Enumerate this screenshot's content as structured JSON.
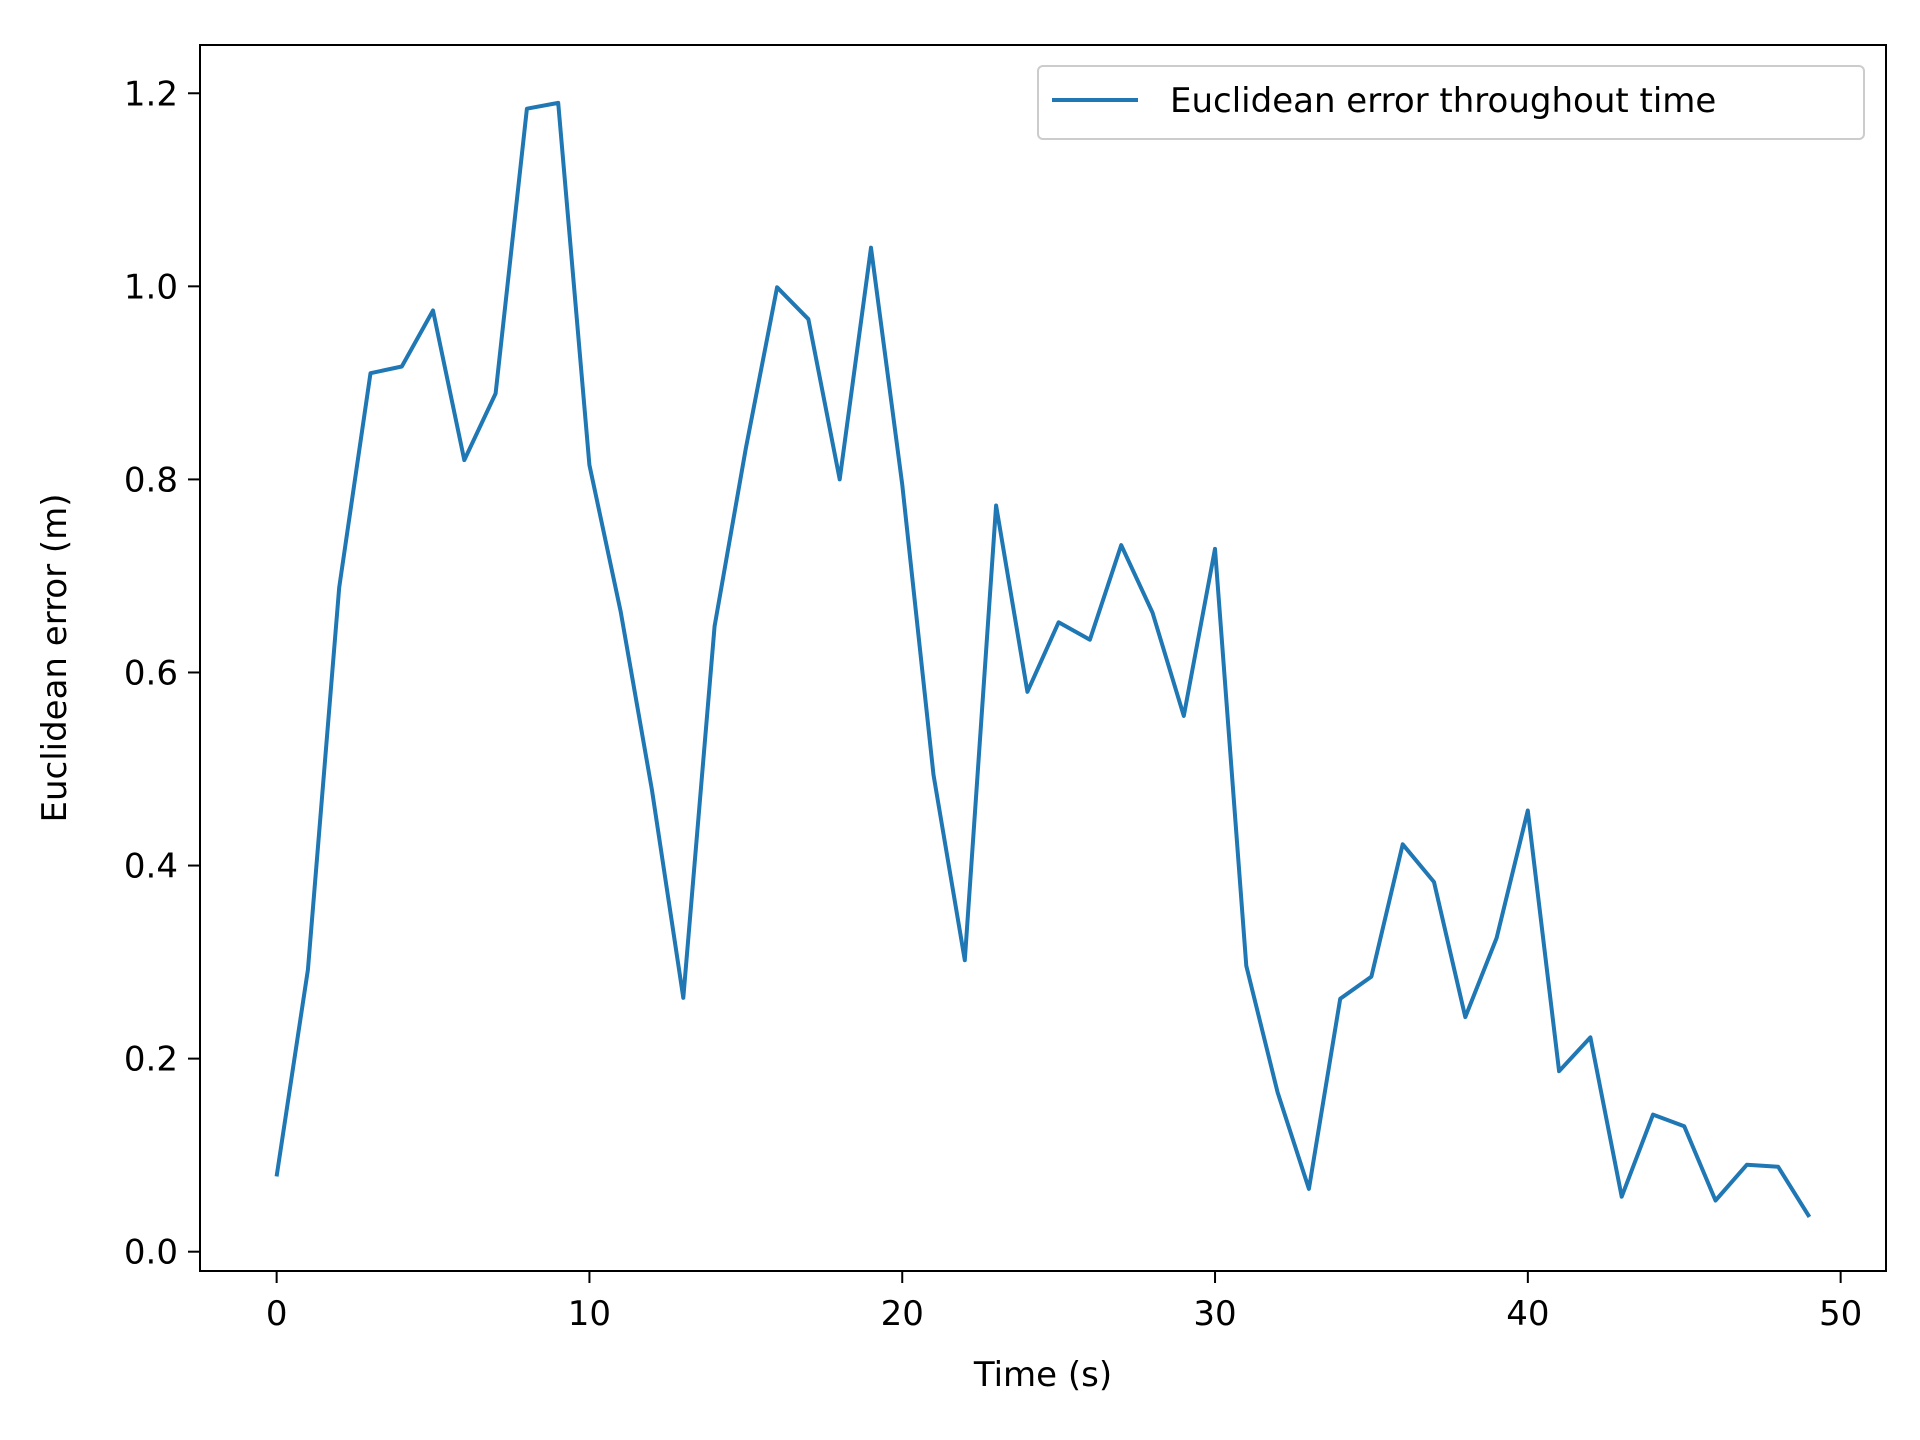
{
  "chart_data": {
    "type": "line",
    "title": "",
    "xlabel": "Time (s)",
    "ylabel": "Euclidean error (m)",
    "xlim": [
      -2.45,
      51.45
    ],
    "ylim": [
      -0.02,
      1.25
    ],
    "xticks": [
      0,
      10,
      20,
      30,
      40,
      50
    ],
    "xtick_labels": [
      "0",
      "10",
      "20",
      "30",
      "40",
      "50"
    ],
    "yticks": [
      0.0,
      0.2,
      0.4,
      0.6,
      0.8,
      1.0,
      1.2
    ],
    "ytick_labels": [
      "0.0",
      "0.2",
      "0.4",
      "0.6",
      "0.8",
      "1.0",
      "1.2"
    ],
    "grid": false,
    "legend_position": "top-right",
    "series": [
      {
        "name": "Euclidean error throughout time",
        "color": "#1f77b4",
        "x": [
          0,
          1,
          2,
          3,
          4,
          5,
          6,
          7,
          8,
          9,
          10,
          11,
          12,
          13,
          14,
          15,
          16,
          17,
          18,
          19,
          20,
          21,
          22,
          23,
          24,
          25,
          26,
          27,
          28,
          29,
          30,
          31,
          32,
          33,
          34,
          35,
          36,
          37,
          38,
          39,
          40,
          41,
          42,
          43,
          44,
          45,
          46,
          47,
          48,
          49
        ],
        "y": [
          0.078,
          0.292,
          0.688,
          0.91,
          0.917,
          0.975,
          0.82,
          0.889,
          1.184,
          1.19,
          0.815,
          0.663,
          0.478,
          0.263,
          0.648,
          0.832,
          0.999,
          0.966,
          0.8,
          1.04,
          0.795,
          0.494,
          0.302,
          0.773,
          0.58,
          0.652,
          0.634,
          0.732,
          0.662,
          0.555,
          0.728,
          0.296,
          0.165,
          0.065,
          0.262,
          0.285,
          0.422,
          0.383,
          0.243,
          0.325,
          0.457,
          0.187,
          0.222,
          0.057,
          0.142,
          0.13,
          0.053,
          0.09,
          0.088,
          0.036
        ]
      }
    ]
  }
}
